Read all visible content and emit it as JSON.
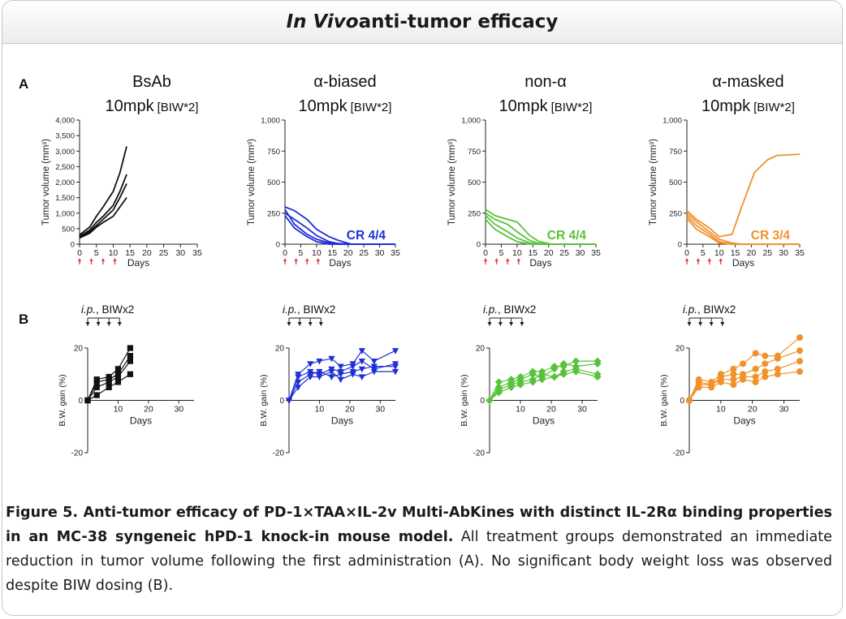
{
  "header": {
    "title_italic": "In Vivo",
    "title_rest": " anti-tumor efficacy"
  },
  "panel_labels": {
    "a": "A",
    "b": "B"
  },
  "caption": {
    "bold": "Figure 5. Anti-tumor efficacy of PD-1×TAA×IL-2v Multi-AbKines with distinct IL-2Rα binding properties in an MC-38 syngeneic hPD-1 knock-in mouse model.",
    "normal": " All treatment groups demonstrated an immediate reduction in tumor volume following the first administration (A). No significant body weight loss was observed despite BIW dosing (B)."
  },
  "colors": {
    "black": "#111111",
    "blue": "#1f2fd6",
    "green": "#57c23a",
    "orange": "#f0922c",
    "dose_arrow": "#e23c3c"
  },
  "chart_data": [
    {
      "type": "line",
      "panel": "A",
      "title": "BsAb",
      "subtitle_dose": "10mpk",
      "subtitle_sched": "[BIW*2]",
      "xlabel": "Days",
      "ylabel": "Tumor volume (mm³)",
      "xlim": [
        0,
        35
      ],
      "ylim": [
        0,
        4000
      ],
      "xticks": [
        0,
        5,
        10,
        15,
        20,
        25,
        30,
        35
      ],
      "yticks": [
        0,
        500,
        1000,
        1500,
        2000,
        2500,
        3000,
        3500,
        4000
      ],
      "ytick_labels": [
        "0",
        "500",
        "1,000",
        "1,500",
        "2,000",
        "2,500",
        "3,000",
        "3,500",
        "4,000"
      ],
      "color": "black",
      "dose_days": [
        0,
        3.5,
        7,
        10.5
      ],
      "annotation": "",
      "series": [
        {
          "x": [
            0,
            3,
            5,
            7,
            10,
            12,
            14
          ],
          "values": [
            300,
            550,
            900,
            1200,
            1700,
            2300,
            3150
          ]
        },
        {
          "x": [
            0,
            3,
            5,
            7,
            10,
            12,
            14
          ],
          "values": [
            250,
            450,
            700,
            900,
            1250,
            1700,
            2250
          ]
        },
        {
          "x": [
            0,
            3,
            5,
            7,
            10,
            12,
            14
          ],
          "values": [
            220,
            400,
            600,
            800,
            1100,
            1500,
            1950
          ]
        },
        {
          "x": [
            0,
            3,
            5,
            7,
            10,
            12,
            14
          ],
          "values": [
            200,
            350,
            550,
            700,
            900,
            1200,
            1500
          ]
        }
      ]
    },
    {
      "type": "line",
      "panel": "A",
      "title": "α-biased",
      "subtitle_dose": "10mpk",
      "subtitle_sched": "[BIW*2]",
      "xlabel": "Days",
      "ylabel": "Tumor volume (mm³)",
      "xlim": [
        0,
        35
      ],
      "ylim": [
        0,
        1000
      ],
      "xticks": [
        0,
        5,
        10,
        15,
        20,
        25,
        30,
        35
      ],
      "yticks": [
        0,
        250,
        500,
        750,
        1000
      ],
      "ytick_labels": [
        "0",
        "250",
        "500",
        "750",
        "1,000"
      ],
      "color": "blue",
      "dose_days": [
        0,
        3.5,
        7,
        10.5
      ],
      "annotation": "CR 4/4",
      "series": [
        {
          "x": [
            0,
            3,
            7,
            10,
            14,
            17,
            21,
            25,
            35
          ],
          "values": [
            300,
            270,
            200,
            120,
            60,
            30,
            0,
            0,
            0
          ]
        },
        {
          "x": [
            0,
            3,
            7,
            10,
            14,
            17,
            21,
            25,
            35
          ],
          "values": [
            250,
            200,
            130,
            70,
            20,
            5,
            0,
            0,
            0
          ]
        },
        {
          "x": [
            0,
            3,
            7,
            10,
            14,
            17,
            21,
            25,
            35
          ],
          "values": [
            280,
            160,
            80,
            40,
            10,
            0,
            0,
            0,
            0
          ]
        },
        {
          "x": [
            0,
            3,
            7,
            10,
            14,
            17,
            21,
            25,
            35
          ],
          "values": [
            230,
            130,
            60,
            20,
            0,
            0,
            0,
            0,
            0
          ]
        }
      ]
    },
    {
      "type": "line",
      "panel": "A",
      "title": "non-α",
      "subtitle_dose": "10mpk",
      "subtitle_sched": "[BIW*2]",
      "xlabel": "Days",
      "ylabel": "Tumor volume (mm³)",
      "xlim": [
        0,
        35
      ],
      "ylim": [
        0,
        1000
      ],
      "xticks": [
        0,
        5,
        10,
        15,
        20,
        25,
        30,
        35
      ],
      "yticks": [
        0,
        250,
        500,
        750,
        1000
      ],
      "ytick_labels": [
        "0",
        "250",
        "500",
        "750",
        "1,000"
      ],
      "color": "green",
      "dose_days": [
        0,
        3.5,
        7,
        10.5
      ],
      "annotation": "CR 4/4",
      "series": [
        {
          "x": [
            0,
            3,
            7,
            10,
            14,
            17,
            21,
            25,
            35
          ],
          "values": [
            280,
            230,
            200,
            180,
            70,
            20,
            0,
            0,
            0
          ]
        },
        {
          "x": [
            0,
            3,
            7,
            10,
            14,
            17,
            21,
            25,
            35
          ],
          "values": [
            250,
            200,
            160,
            100,
            30,
            5,
            0,
            0,
            0
          ]
        },
        {
          "x": [
            0,
            3,
            7,
            10,
            14,
            17,
            21,
            25,
            35
          ],
          "values": [
            230,
            160,
            100,
            50,
            10,
            0,
            0,
            0,
            0
          ]
        },
        {
          "x": [
            0,
            3,
            7,
            10,
            14,
            17,
            21,
            25,
            35
          ],
          "values": [
            200,
            120,
            60,
            20,
            0,
            0,
            0,
            0,
            0
          ]
        }
      ]
    },
    {
      "type": "line",
      "panel": "A",
      "title": "α-masked",
      "subtitle_dose": "10mpk",
      "subtitle_sched": "[BIW*2]",
      "xlabel": "Days",
      "ylabel": "Tumor volume (mm³)",
      "xlim": [
        0,
        35
      ],
      "ylim": [
        0,
        1000
      ],
      "xticks": [
        0,
        5,
        10,
        15,
        20,
        25,
        30,
        35
      ],
      "yticks": [
        0,
        250,
        500,
        750,
        1000
      ],
      "ytick_labels": [
        "0",
        "250",
        "500",
        "750",
        "1,000"
      ],
      "color": "orange",
      "dose_days": [
        0,
        3.5,
        7,
        10.5
      ],
      "annotation": "CR 3/4",
      "series": [
        {
          "x": [
            0,
            3,
            7,
            10,
            14,
            17,
            21,
            25,
            28,
            35
          ],
          "values": [
            270,
            200,
            130,
            60,
            80,
            300,
            580,
            680,
            715,
            725
          ]
        },
        {
          "x": [
            0,
            3,
            7,
            10,
            14,
            17,
            21,
            25,
            35
          ],
          "values": [
            250,
            180,
            100,
            40,
            10,
            0,
            0,
            0,
            0
          ]
        },
        {
          "x": [
            0,
            3,
            7,
            10,
            14,
            17,
            21,
            25,
            35
          ],
          "values": [
            230,
            150,
            80,
            20,
            0,
            0,
            0,
            0,
            0
          ]
        },
        {
          "x": [
            0,
            3,
            7,
            10,
            14,
            17,
            21,
            25,
            35
          ],
          "values": [
            210,
            120,
            60,
            10,
            0,
            0,
            0,
            0,
            0
          ]
        }
      ]
    },
    {
      "type": "line",
      "panel": "B",
      "title": "",
      "schedule_italic": "i.p.",
      "schedule_rest": ", BIWx2",
      "xlabel": "Days",
      "ylabel": "B.W. gain (%)",
      "xlim": [
        0,
        35
      ],
      "ylim": [
        -20,
        20
      ],
      "xticks": [
        10,
        20,
        30
      ],
      "yticks": [
        -20,
        0,
        20
      ],
      "ytick_labels": [
        "-20",
        "0",
        "20"
      ],
      "color": "black",
      "marker": "square",
      "dose_days": [
        0,
        3.5,
        7,
        10.5
      ],
      "series": [
        {
          "x": [
            0,
            3,
            7,
            10,
            14
          ],
          "values": [
            0,
            8,
            9,
            12,
            20
          ]
        },
        {
          "x": [
            0,
            3,
            7,
            10,
            14
          ],
          "values": [
            0,
            7,
            8,
            10,
            17
          ]
        },
        {
          "x": [
            0,
            3,
            7,
            10,
            14
          ],
          "values": [
            0,
            5,
            7,
            9,
            15
          ]
        },
        {
          "x": [
            0,
            3,
            7,
            10,
            14
          ],
          "values": [
            0,
            2,
            5,
            7,
            10
          ]
        }
      ]
    },
    {
      "type": "line",
      "panel": "B",
      "title": "",
      "schedule_italic": "i.p.",
      "schedule_rest": ", BIWx2",
      "xlabel": "Days",
      "ylabel": "B.W. gain (%)",
      "xlim": [
        0,
        35
      ],
      "ylim": [
        -20,
        20
      ],
      "xticks": [
        10,
        20,
        30
      ],
      "yticks": [
        -20,
        0,
        20
      ],
      "ytick_labels": [
        "-20",
        "0",
        "20"
      ],
      "color": "blue",
      "marker": "triangle-down",
      "dose_days": [
        0,
        3.5,
        7,
        10.5
      ],
      "series": [
        {
          "x": [
            0,
            3,
            7,
            10,
            14,
            17,
            21,
            24,
            28,
            35
          ],
          "values": [
            0,
            10,
            14,
            15,
            16,
            13,
            14,
            19,
            15,
            19
          ]
        },
        {
          "x": [
            0,
            3,
            7,
            10,
            14,
            17,
            21,
            24,
            28,
            35
          ],
          "values": [
            0,
            9,
            11,
            10,
            12,
            11,
            13,
            15,
            12,
            14
          ]
        },
        {
          "x": [
            0,
            3,
            7,
            10,
            14,
            17,
            21,
            24,
            28,
            35
          ],
          "values": [
            0,
            7,
            10,
            11,
            9,
            10,
            11,
            12,
            13,
            13
          ]
        },
        {
          "x": [
            0,
            3,
            7,
            10,
            14,
            17,
            21,
            24,
            28,
            35
          ],
          "values": [
            0,
            5,
            9,
            9,
            11,
            8,
            10,
            9,
            11,
            11
          ]
        }
      ]
    },
    {
      "type": "line",
      "panel": "B",
      "title": "",
      "schedule_italic": "i.p.",
      "schedule_rest": ", BIWx2",
      "xlabel": "Days",
      "ylabel": "B.W. gain (%)",
      "xlim": [
        0,
        35
      ],
      "ylim": [
        -20,
        20
      ],
      "xticks": [
        10,
        20,
        30
      ],
      "yticks": [
        -20,
        0,
        20
      ],
      "ytick_labels": [
        "-20",
        "0",
        "20"
      ],
      "color": "green",
      "marker": "diamond",
      "dose_days": [
        0,
        3.5,
        7,
        10.5
      ],
      "series": [
        {
          "x": [
            0,
            3,
            7,
            10,
            14,
            17,
            21,
            24,
            28,
            35
          ],
          "values": [
            0,
            7,
            8,
            9,
            11,
            11,
            13,
            13,
            15,
            15
          ]
        },
        {
          "x": [
            0,
            3,
            7,
            10,
            14,
            17,
            21,
            24,
            28,
            35
          ],
          "values": [
            0,
            5,
            7,
            8,
            10,
            9,
            12,
            14,
            13,
            14
          ]
        },
        {
          "x": [
            0,
            3,
            7,
            10,
            14,
            17,
            21,
            24,
            28,
            35
          ],
          "values": [
            0,
            4,
            6,
            7,
            8,
            10,
            9,
            11,
            12,
            10
          ]
        },
        {
          "x": [
            0,
            3,
            7,
            10,
            14,
            17,
            21,
            24,
            28,
            35
          ],
          "values": [
            0,
            3,
            5,
            6,
            7,
            8,
            9,
            10,
            11,
            9
          ]
        }
      ]
    },
    {
      "type": "line",
      "panel": "B",
      "title": "",
      "schedule_italic": "i.p.",
      "schedule_rest": ", BIWx2",
      "xlabel": "Days",
      "ylabel": "B.W. gain (%)",
      "xlim": [
        0,
        35
      ],
      "ylim": [
        -20,
        20
      ],
      "xticks": [
        10,
        20,
        30
      ],
      "yticks": [
        -20,
        0,
        20
      ],
      "ytick_labels": [
        "-20",
        "0",
        "20"
      ],
      "color": "orange",
      "marker": "circle",
      "dose_days": [
        0,
        3.5,
        7,
        10.5
      ],
      "series": [
        {
          "x": [
            0,
            3,
            7,
            10,
            14,
            17,
            21,
            24,
            28,
            35
          ],
          "values": [
            0,
            8,
            7,
            10,
            12,
            14,
            18,
            17,
            17,
            24
          ]
        },
        {
          "x": [
            0,
            3,
            7,
            10,
            14,
            17,
            21,
            24,
            28,
            35
          ],
          "values": [
            0,
            7,
            6,
            9,
            10,
            10,
            12,
            14,
            16,
            19
          ]
        },
        {
          "x": [
            0,
            3,
            7,
            10,
            14,
            17,
            21,
            24,
            28,
            35
          ],
          "values": [
            0,
            6,
            6,
            8,
            8,
            9,
            9,
            11,
            12,
            15
          ]
        },
        {
          "x": [
            0,
            3,
            7,
            10,
            14,
            17,
            21,
            24,
            28,
            35
          ],
          "values": [
            0,
            5,
            5,
            7,
            6,
            8,
            7,
            9,
            10,
            11
          ]
        }
      ]
    }
  ]
}
